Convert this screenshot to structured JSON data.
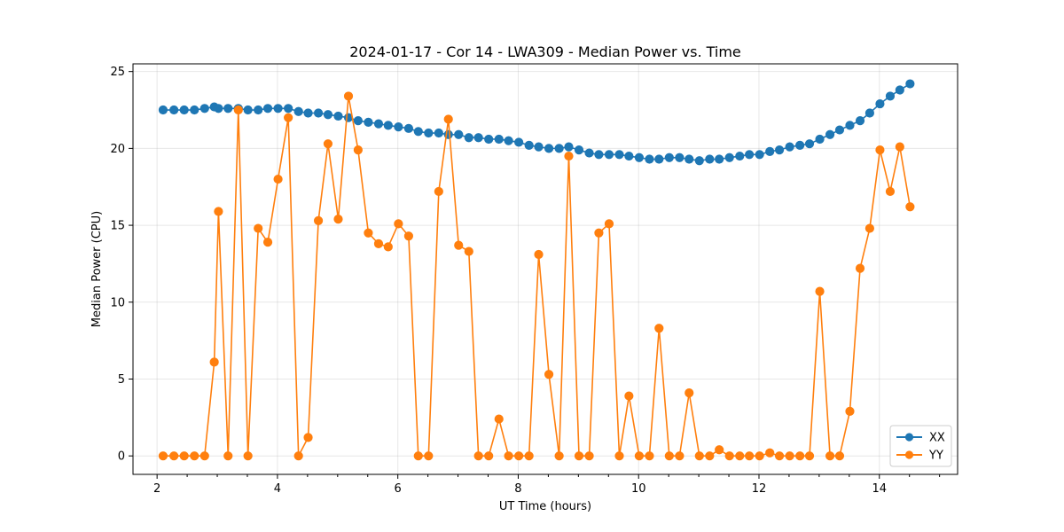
{
  "chart_data": {
    "type": "line",
    "title": "2024-01-17 - Cor 14 - LWA309 - Median Power vs. Time",
    "xlabel": "UT Time (hours)",
    "ylabel": "Median Power (CPU)",
    "xlim": [
      1.6,
      15.3
    ],
    "ylim": [
      -1.2,
      25.5
    ],
    "xticks": [
      2,
      4,
      6,
      8,
      10,
      12,
      14
    ],
    "yticks": [
      0,
      5,
      10,
      15,
      20,
      25
    ],
    "grid": true,
    "legend_position": "lower-right",
    "series": [
      {
        "name": "XX",
        "color": "#1f77b4",
        "marker": "circle",
        "points": [
          [
            2.1,
            22.5
          ],
          [
            2.28,
            22.5
          ],
          [
            2.45,
            22.5
          ],
          [
            2.62,
            22.5
          ],
          [
            2.79,
            22.6
          ],
          [
            2.95,
            22.7
          ],
          [
            3.02,
            22.6
          ],
          [
            3.18,
            22.6
          ],
          [
            3.35,
            22.6
          ],
          [
            3.51,
            22.5
          ],
          [
            3.68,
            22.5
          ],
          [
            3.84,
            22.6
          ],
          [
            4.01,
            22.6
          ],
          [
            4.18,
            22.6
          ],
          [
            4.35,
            22.4
          ],
          [
            4.51,
            22.3
          ],
          [
            4.68,
            22.3
          ],
          [
            4.84,
            22.2
          ],
          [
            5.01,
            22.1
          ],
          [
            5.18,
            22.0
          ],
          [
            5.34,
            21.8
          ],
          [
            5.51,
            21.7
          ],
          [
            5.68,
            21.6
          ],
          [
            5.84,
            21.5
          ],
          [
            6.01,
            21.4
          ],
          [
            6.18,
            21.3
          ],
          [
            6.34,
            21.1
          ],
          [
            6.51,
            21.0
          ],
          [
            6.68,
            21.0
          ],
          [
            6.84,
            20.9
          ],
          [
            7.01,
            20.9
          ],
          [
            7.18,
            20.7
          ],
          [
            7.34,
            20.7
          ],
          [
            7.51,
            20.6
          ],
          [
            7.68,
            20.6
          ],
          [
            7.84,
            20.5
          ],
          [
            8.01,
            20.4
          ],
          [
            8.18,
            20.2
          ],
          [
            8.34,
            20.1
          ],
          [
            8.51,
            20.0
          ],
          [
            8.68,
            20.0
          ],
          [
            8.84,
            20.1
          ],
          [
            9.01,
            19.9
          ],
          [
            9.18,
            19.7
          ],
          [
            9.34,
            19.6
          ],
          [
            9.51,
            19.6
          ],
          [
            9.68,
            19.6
          ],
          [
            9.84,
            19.5
          ],
          [
            10.01,
            19.4
          ],
          [
            10.18,
            19.3
          ],
          [
            10.34,
            19.3
          ],
          [
            10.51,
            19.4
          ],
          [
            10.68,
            19.4
          ],
          [
            10.84,
            19.3
          ],
          [
            11.01,
            19.2
          ],
          [
            11.18,
            19.3
          ],
          [
            11.34,
            19.3
          ],
          [
            11.51,
            19.4
          ],
          [
            11.68,
            19.5
          ],
          [
            11.84,
            19.6
          ],
          [
            12.01,
            19.6
          ],
          [
            12.18,
            19.8
          ],
          [
            12.34,
            19.9
          ],
          [
            12.51,
            20.1
          ],
          [
            12.68,
            20.2
          ],
          [
            12.84,
            20.3
          ],
          [
            13.01,
            20.6
          ],
          [
            13.18,
            20.9
          ],
          [
            13.34,
            21.2
          ],
          [
            13.51,
            21.5
          ],
          [
            13.68,
            21.8
          ],
          [
            13.84,
            22.3
          ],
          [
            14.01,
            22.9
          ],
          [
            14.18,
            23.4
          ],
          [
            14.34,
            23.8
          ],
          [
            14.51,
            24.2
          ]
        ]
      },
      {
        "name": "YY",
        "color": "#ff7f0e",
        "marker": "circle",
        "points": [
          [
            2.1,
            0.0
          ],
          [
            2.28,
            0.0
          ],
          [
            2.45,
            0.0
          ],
          [
            2.62,
            0.0
          ],
          [
            2.79,
            0.0
          ],
          [
            2.95,
            6.1
          ],
          [
            3.02,
            15.9
          ],
          [
            3.18,
            0.0
          ],
          [
            3.35,
            22.5
          ],
          [
            3.51,
            0.0
          ],
          [
            3.68,
            14.8
          ],
          [
            3.84,
            13.9
          ],
          [
            4.01,
            18.0
          ],
          [
            4.18,
            22.0
          ],
          [
            4.35,
            0.0
          ],
          [
            4.51,
            1.2
          ],
          [
            4.68,
            15.3
          ],
          [
            4.84,
            20.3
          ],
          [
            5.01,
            15.4
          ],
          [
            5.18,
            23.4
          ],
          [
            5.34,
            19.9
          ],
          [
            5.51,
            14.5
          ],
          [
            5.68,
            13.8
          ],
          [
            5.84,
            13.6
          ],
          [
            6.01,
            15.1
          ],
          [
            6.18,
            14.3
          ],
          [
            6.34,
            0.0
          ],
          [
            6.51,
            0.0
          ],
          [
            6.68,
            17.2
          ],
          [
            6.84,
            21.9
          ],
          [
            7.01,
            13.7
          ],
          [
            7.18,
            13.3
          ],
          [
            7.34,
            0.0
          ],
          [
            7.51,
            0.0
          ],
          [
            7.68,
            2.4
          ],
          [
            7.84,
            0.0
          ],
          [
            8.01,
            0.0
          ],
          [
            8.18,
            0.0
          ],
          [
            8.34,
            13.1
          ],
          [
            8.51,
            5.3
          ],
          [
            8.68,
            0.0
          ],
          [
            8.84,
            19.5
          ],
          [
            9.01,
            0.0
          ],
          [
            9.18,
            0.0
          ],
          [
            9.34,
            14.5
          ],
          [
            9.51,
            15.1
          ],
          [
            9.68,
            0.0
          ],
          [
            9.84,
            3.9
          ],
          [
            10.01,
            0.0
          ],
          [
            10.18,
            0.0
          ],
          [
            10.34,
            8.3
          ],
          [
            10.51,
            0.0
          ],
          [
            10.68,
            0.0
          ],
          [
            10.84,
            4.1
          ],
          [
            11.01,
            0.0
          ],
          [
            11.18,
            0.0
          ],
          [
            11.34,
            0.4
          ],
          [
            11.51,
            0.0
          ],
          [
            11.68,
            0.0
          ],
          [
            11.84,
            0.0
          ],
          [
            12.01,
            0.0
          ],
          [
            12.18,
            0.2
          ],
          [
            12.34,
            0.0
          ],
          [
            12.51,
            0.0
          ],
          [
            12.68,
            0.0
          ],
          [
            12.84,
            0.0
          ],
          [
            13.01,
            10.7
          ],
          [
            13.18,
            0.0
          ],
          [
            13.34,
            0.0
          ],
          [
            13.51,
            2.9
          ],
          [
            13.68,
            12.2
          ],
          [
            13.84,
            14.8
          ],
          [
            14.01,
            19.9
          ],
          [
            14.18,
            17.2
          ],
          [
            14.34,
            20.1
          ],
          [
            14.51,
            16.2
          ]
        ]
      }
    ]
  }
}
